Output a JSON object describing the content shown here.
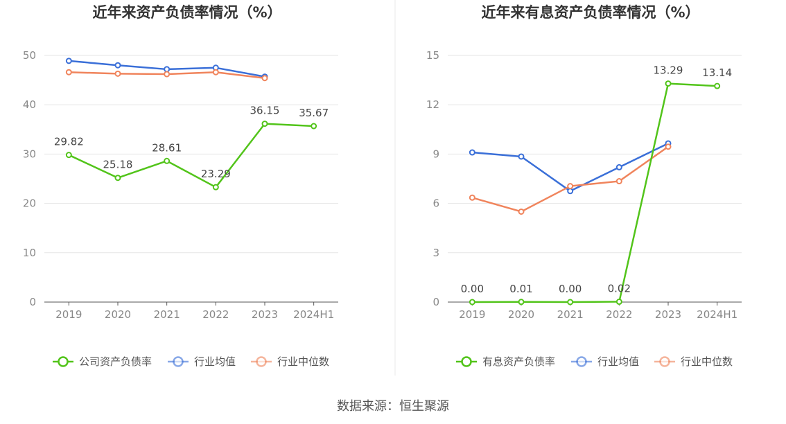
{
  "chart_data": [
    {
      "type": "line",
      "title": "近年来资产负债率情况（%）",
      "categories": [
        "2019",
        "2020",
        "2021",
        "2022",
        "2023",
        "2024H1"
      ],
      "ylim": [
        0,
        50
      ],
      "yticks": [
        0,
        10,
        20,
        30,
        40,
        50
      ],
      "grid": true,
      "legend_position": "bottom",
      "series": [
        {
          "name": "公司资产负债率",
          "color": "#52c41a",
          "values": [
            29.82,
            25.18,
            28.61,
            23.29,
            36.15,
            35.67
          ],
          "labels": [
            "29.82",
            "25.18",
            "28.61",
            "23.29",
            "36.15",
            "35.67"
          ]
        },
        {
          "name": "行业均值",
          "color": "#3a6fd8",
          "values": [
            48.9,
            48.0,
            47.2,
            47.5,
            45.7,
            null
          ]
        },
        {
          "name": "行业中位数",
          "color": "#f0845c",
          "values": [
            46.6,
            46.3,
            46.2,
            46.6,
            45.4,
            null
          ]
        }
      ]
    },
    {
      "type": "line",
      "title": "近年来有息资产负债率情况（%）",
      "categories": [
        "2019",
        "2020",
        "2021",
        "2022",
        "2023",
        "2024H1"
      ],
      "ylim": [
        0,
        15
      ],
      "yticks": [
        0,
        3,
        6,
        9,
        12,
        15
      ],
      "grid": true,
      "legend_position": "bottom",
      "series": [
        {
          "name": "有息资产负债率",
          "color": "#52c41a",
          "values": [
            0.0,
            0.01,
            0.0,
            0.02,
            13.29,
            13.14
          ],
          "labels": [
            "0.00",
            "0.01",
            "0.00",
            "0.02",
            "13.29",
            "13.14"
          ]
        },
        {
          "name": "行业均值",
          "color": "#3a6fd8",
          "values": [
            9.1,
            8.85,
            6.75,
            8.2,
            9.65,
            null
          ]
        },
        {
          "name": "行业中位数",
          "color": "#f0845c",
          "values": [
            6.35,
            5.5,
            7.05,
            7.35,
            9.45,
            null
          ]
        }
      ]
    }
  ],
  "footer": {
    "source": "数据来源：恒生聚源"
  }
}
